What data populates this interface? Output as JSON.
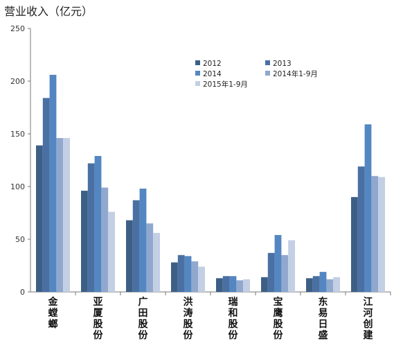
{
  "chart_data": {
    "type": "bar",
    "title": "营业收入（亿元）",
    "categories": [
      "金螳螂",
      "亚厦股份",
      "广田股份",
      "洪涛股份",
      "瑞和股份",
      "宝鹰股份",
      "东易日盛",
      "江河创建"
    ],
    "series": [
      {
        "name": "2012",
        "color": "#3d5f86",
        "values": [
          139,
          96,
          68,
          28,
          13,
          14,
          13,
          90
        ]
      },
      {
        "name": "2013",
        "color": "#4a70a3",
        "values": [
          184,
          122,
          87,
          35,
          15,
          37,
          15,
          119
        ]
      },
      {
        "name": "2014",
        "color": "#5487c1",
        "values": [
          206,
          129,
          98,
          34,
          15,
          54,
          19,
          159
        ]
      },
      {
        "name": "2014年1-9月",
        "color": "#91a8ce",
        "values": [
          146,
          99,
          65,
          29,
          11,
          35,
          12,
          110
        ]
      },
      {
        "name": "2015年1-9月",
        "color": "#c3cfe4",
        "values": [
          146,
          76,
          56,
          24,
          12,
          49,
          14,
          109
        ]
      }
    ],
    "ylim": [
      0,
      250
    ],
    "yticks": [
      0,
      50,
      100,
      150,
      200,
      250
    ],
    "grid": false,
    "legend_position": "top-right"
  }
}
